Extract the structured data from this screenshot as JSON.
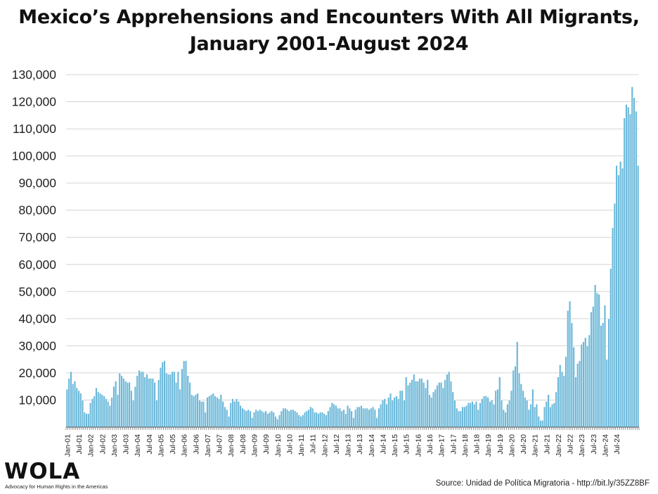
{
  "chart_data": {
    "type": "bar",
    "title_lines": [
      "Mexico’s Apprehensions and Encounters With All Migrants,",
      "January 2001-August 2024"
    ],
    "xlabel": "",
    "ylabel": "",
    "ylim": [
      0,
      130000
    ],
    "yticks": [
      10000,
      20000,
      30000,
      40000,
      50000,
      60000,
      70000,
      80000,
      90000,
      100000,
      110000,
      120000,
      130000
    ],
    "ytick_labels": [
      "10,000",
      "20,000",
      "30,000",
      "40,000",
      "50,000",
      "60,000",
      "70,000",
      "80,000",
      "90,000",
      "100,000",
      "110,000",
      "120,000",
      "130,000"
    ],
    "grid": "horizontal",
    "bar_color": "#6bb8d9",
    "start": "Jan-01",
    "end": "Aug-24",
    "x_tick_labels": [
      "Jan-01",
      "Jul-01",
      "Jan-02",
      "Jul-02",
      "Jan-03",
      "Jul-03",
      "Jan-04",
      "Jul-04",
      "Jan-05",
      "Jul-05",
      "Jan-06",
      "Jul-06",
      "Jan-07",
      "Jul-07",
      "Jan-08",
      "Jul-08",
      "Jan-09",
      "Jul-09",
      "Jan-10",
      "Jul-10",
      "Jan-11",
      "Jul-11",
      "Jan-12",
      "Jul-12",
      "Jan-13",
      "Jul-13",
      "Jan-14",
      "Jul-14",
      "Jan-15",
      "Jul-15",
      "Jan-16",
      "Jul-16",
      "Jan-17",
      "Jul-17",
      "Jan-18",
      "Jul-18",
      "Jan-19",
      "Jul-19",
      "Jan-20",
      "Jul-20",
      "Jan-21",
      "Jul-21",
      "Jan-22",
      "Jul-22",
      "Jan-23",
      "Jul-23",
      "Jan-24",
      "Jul-24"
    ],
    "values": [
      14000,
      18000,
      20500,
      16000,
      17000,
      14500,
      13500,
      12500,
      10000,
      5500,
      5000,
      5000,
      9000,
      10500,
      11500,
      14500,
      13000,
      12500,
      12000,
      11500,
      10500,
      9500,
      8000,
      11000,
      15000,
      17000,
      12000,
      20000,
      19000,
      18000,
      17000,
      16500,
      16500,
      13500,
      10000,
      15000,
      19000,
      21000,
      20500,
      20500,
      18500,
      19500,
      18000,
      18000,
      18000,
      16500,
      10000,
      17500,
      22000,
      24000,
      24500,
      20000,
      19500,
      19500,
      20500,
      20500,
      16500,
      20500,
      14000,
      21500,
      24500,
      24500,
      19000,
      16500,
      12000,
      11500,
      12000,
      12500,
      10000,
      9500,
      9500,
      5500,
      11000,
      11500,
      12000,
      12500,
      11500,
      11000,
      10500,
      12000,
      9500,
      7500,
      6500,
      4000,
      9000,
      10500,
      9500,
      10500,
      9500,
      8000,
      7000,
      6500,
      6000,
      6500,
      6000,
      3500,
      5500,
      6500,
      6000,
      6500,
      6000,
      5500,
      6000,
      5000,
      5500,
      6000,
      5500,
      4000,
      3000,
      4500,
      6000,
      7000,
      7000,
      6500,
      6000,
      6500,
      6500,
      6000,
      5500,
      4500,
      4000,
      4500,
      5500,
      6000,
      6500,
      7500,
      7000,
      5500,
      5500,
      5000,
      5500,
      5500,
      5000,
      4500,
      6000,
      7500,
      9000,
      8500,
      8000,
      7000,
      7000,
      6000,
      6500,
      5000,
      8000,
      7000,
      6000,
      3500,
      6500,
      7500,
      7500,
      8000,
      7000,
      7000,
      7000,
      6500,
      7000,
      7500,
      6500,
      3500,
      7000,
      8500,
      10000,
      10500,
      8500,
      11000,
      12500,
      10000,
      11000,
      11500,
      10500,
      13500,
      13500,
      10000,
      18500,
      15500,
      16500,
      17500,
      19500,
      17000,
      17000,
      18000,
      18000,
      16500,
      14500,
      17500,
      12000,
      11000,
      13000,
      14000,
      15500,
      16500,
      16500,
      14500,
      17500,
      19500,
      20500,
      17000,
      13000,
      10000,
      7000,
      6000,
      6000,
      7500,
      7500,
      8000,
      9000,
      9000,
      9500,
      8500,
      9500,
      6500,
      9000,
      10500,
      11500,
      11500,
      11000,
      9500,
      10000,
      8500,
      13500,
      14000,
      18500,
      10000,
      6500,
      5500,
      8500,
      10000,
      13500,
      21000,
      22500,
      31500,
      20000,
      16000,
      13500,
      11000,
      10000,
      6500,
      8500,
      14000,
      7500,
      8500,
      4000,
      2500,
      2500,
      7500,
      9500,
      12000,
      7500,
      8500,
      9000,
      13000,
      18500,
      23000,
      20500,
      19000,
      26000,
      43000,
      46500,
      38500,
      29500,
      18500,
      23500,
      24500,
      30500,
      31500,
      33000,
      30000,
      34000,
      42500,
      44500,
      52500,
      49500,
      49000,
      37500,
      38500,
      45000,
      25000,
      40000,
      58500,
      73500,
      82500,
      96500,
      93000,
      98000,
      95500,
      114000,
      119000,
      118000,
      115500,
      125500,
      121500,
      116500,
      96500
    ]
  },
  "logo": {
    "word": "WOLA",
    "tagline": "Advocacy for Human Rights in the Americas"
  },
  "source": "Source: Unidad de Política Migratoria - http://bit.ly/35ZZ8BF",
  "colors": {
    "bar": "#6bb8d9",
    "bar_stroke": "#ffffff",
    "grid": "#d4d4d4",
    "axis": "#555555"
  }
}
